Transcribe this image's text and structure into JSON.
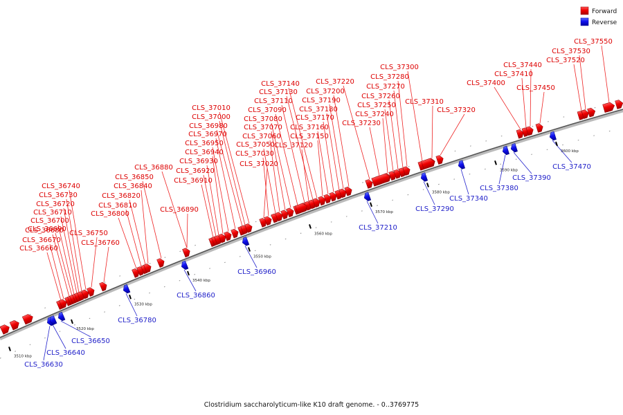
{
  "legend": {
    "forward": {
      "label": "Forward",
      "color": "#ee0000"
    },
    "reverse": {
      "label": "Reverse",
      "color": "#1010ee"
    }
  },
  "caption": "Clostridium saccharolyticum-like K10 draft genome. - 0..3769775",
  "ticks": [
    "3510 kbp",
    "3520 kbp",
    "3530 kbp",
    "3540 kbp",
    "3550 kbp",
    "3560 kbp",
    "3570 kbp",
    "3580 kbp",
    "3590 kbp",
    "3600 kbp"
  ],
  "forward_genes": [
    "CLS_36660",
    "CLS_36670",
    "CLS_36680",
    "CLS_36690",
    "CLS_36700",
    "CLS_36710",
    "CLS_36720",
    "CLS_36730",
    "CLS_36740",
    "CLS_36750",
    "CLS_36760",
    "CLS_36800",
    "CLS_36810",
    "CLS_36820",
    "CLS_36840",
    "CLS_36850",
    "CLS_36880",
    "CLS_36890",
    "CLS_36910",
    "CLS_36920",
    "CLS_36930",
    "CLS_36940",
    "CLS_36950",
    "CLS_36970",
    "CLS_36980",
    "CLS_37000",
    "CLS_37010",
    "CLS_37020",
    "CLS_37030",
    "CLS_37050",
    "CLS_37060",
    "CLS_37070",
    "CLS_37080",
    "CLS_37090",
    "CLS_37110",
    "CLS_37120",
    "CLS_37130",
    "CLS_37140",
    "CLS_37150",
    "CLS_37160",
    "CLS_37170",
    "CLS_37180",
    "CLS_37190",
    "CLS_37200",
    "CLS_37220",
    "CLS_37230",
    "CLS_37240",
    "CLS_37250",
    "CLS_37260",
    "CLS_37270",
    "CLS_37280",
    "CLS_37300",
    "CLS_37310",
    "CLS_37320",
    "CLS_37400",
    "CLS_37410",
    "CLS_37440",
    "CLS_37450",
    "CLS_37520",
    "CLS_37530",
    "CLS_37550"
  ],
  "reverse_genes": [
    "CLS_36630",
    "CLS_36640",
    "CLS_36650",
    "CLS_36780",
    "CLS_36860",
    "CLS_36960",
    "CLS_37210",
    "CLS_37290",
    "CLS_37340",
    "CLS_37380",
    "CLS_37390",
    "CLS_37470"
  ]
}
